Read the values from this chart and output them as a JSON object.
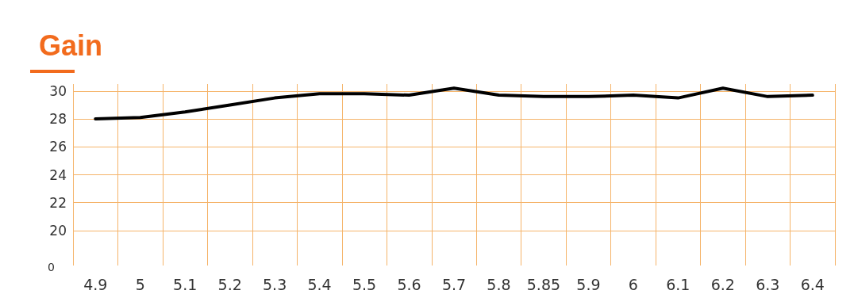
{
  "chart_data": {
    "type": "line",
    "title": "Gain",
    "annotations": [
      "0"
    ],
    "categories": [
      "4.9",
      "5",
      "5.1",
      "5.2",
      "5.3",
      "5.4",
      "5.5",
      "5.6",
      "5.7",
      "5.8",
      "5.85",
      "5.9",
      "6",
      "6.1",
      "6.2",
      "6.3",
      "6.4"
    ],
    "series": [
      {
        "color": "#000000",
        "values": [
          28.0,
          28.1,
          28.5,
          29.0,
          29.5,
          29.8,
          29.8,
          29.7,
          30.2,
          29.7,
          29.6,
          29.6,
          29.7,
          29.5,
          30.2,
          29.6,
          29.7
        ]
      }
    ],
    "ylim": [
      17.5,
      30.5
    ],
    "yticks": [
      20,
      22,
      24,
      26,
      28,
      30
    ],
    "grid": true,
    "marker": "none",
    "line_style": "solid"
  }
}
